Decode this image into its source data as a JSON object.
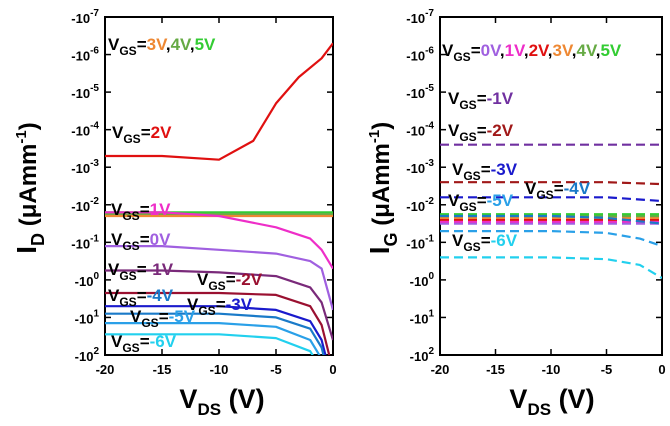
{
  "colors": {
    "vgs_5": "#33cc33",
    "vgs_4": "#66aa44",
    "vgs_3": "#ee8833",
    "vgs_2": "#e01010",
    "vgs_1": "#ee2ec8",
    "vgs_0": "#a060e0",
    "vgs_m1": "#7a2a7a",
    "vgs_m2": "#9a1030",
    "vgs_m3": "#1a1acc",
    "vgs_m4": "#1a7ac8",
    "vgs_m5": "#2aa0e8",
    "vgs_m6": "#22d0ee",
    "vgs_m2_gate": "#a01818",
    "vgs_m1_gate": "#7030a0"
  },
  "chart_data": [
    {
      "panel": "left",
      "type": "line",
      "ylabel": {
        "main": "I",
        "sub": "D",
        "unit": " (μAmm",
        "sup": "-1",
        "close": ")"
      },
      "xlabel": {
        "main": "V",
        "sub": "DS",
        "unit": " (V)"
      },
      "xlim": [
        -20,
        0
      ],
      "xticks": [
        "-20",
        "-15",
        "-10",
        "-5",
        "0"
      ],
      "yticks": [
        {
          "base": "-10",
          "exp": "-7"
        },
        {
          "base": "-10",
          "exp": "-6"
        },
        {
          "base": "-10",
          "exp": "-5"
        },
        {
          "base": "-10",
          "exp": "-4"
        },
        {
          "base": "-10",
          "exp": "-3"
        },
        {
          "base": "-10",
          "exp": "-2"
        },
        {
          "base": "-10",
          "exp": "-1"
        },
        {
          "base": "-10",
          "exp": "0"
        },
        {
          "base": "-10",
          "exp": "1"
        },
        {
          "base": "-10",
          "exp": "2"
        }
      ],
      "y_scale": "log (symmetric, negative current)",
      "series": [
        {
          "key": "vgs_5",
          "x": [
            -20,
            -15,
            -10,
            -5,
            0
          ],
          "y": [
            -1.8,
            -1.8,
            -1.8,
            -1.8,
            -1.8
          ]
        },
        {
          "key": "vgs_4",
          "x": [
            -20,
            -15,
            -10,
            -5,
            0
          ],
          "y": [
            -1.75,
            -1.75,
            -1.75,
            -1.75,
            -1.75
          ]
        },
        {
          "key": "vgs_3",
          "x": [
            -20,
            -15,
            -10,
            -5,
            0
          ],
          "y": [
            -1.7,
            -1.7,
            -1.7,
            -1.7,
            -1.7
          ]
        },
        {
          "key": "vgs_2",
          "x": [
            -20,
            -15,
            -10,
            -7,
            -5,
            -3,
            -1,
            0
          ],
          "y": [
            -3.3,
            -3.3,
            -3.2,
            -3.7,
            -4.7,
            -5.4,
            -5.9,
            -6.3
          ]
        },
        {
          "key": "vgs_1",
          "x": [
            -20,
            -15,
            -10,
            -5,
            -2,
            -1,
            0
          ],
          "y": [
            -1.8,
            -1.8,
            -1.7,
            -1.4,
            -1.1,
            -0.8,
            -0.3
          ]
        },
        {
          "key": "vgs_0",
          "x": [
            -20,
            -15,
            -10,
            -5,
            -2,
            -1,
            0
          ],
          "y": [
            -0.9,
            -0.9,
            -0.8,
            -0.7,
            -0.5,
            -0.3,
            0.8
          ]
        },
        {
          "key": "vgs_m1",
          "x": [
            -20,
            -15,
            -10,
            -5,
            -2,
            -1,
            0
          ],
          "y": [
            -0.25,
            -0.25,
            -0.2,
            -0.1,
            0.2,
            0.6,
            1.6
          ]
        },
        {
          "key": "vgs_m2",
          "x": [
            -20,
            -15,
            -10,
            -5,
            -2,
            -1,
            0
          ],
          "y": [
            0.35,
            0.35,
            0.35,
            0.4,
            0.7,
            1.2,
            2.4
          ]
        },
        {
          "key": "vgs_m3",
          "x": [
            -20,
            -15,
            -10,
            -5,
            -2,
            -1,
            0
          ],
          "y": [
            0.7,
            0.7,
            0.7,
            0.8,
            1.1,
            1.6,
            2.8
          ]
        },
        {
          "key": "vgs_m4",
          "x": [
            -20,
            -15,
            -10,
            -5,
            -2,
            -1,
            0
          ],
          "y": [
            0.9,
            0.9,
            0.9,
            1.0,
            1.3,
            1.8,
            3.0
          ]
        },
        {
          "key": "vgs_m5",
          "x": [
            -20,
            -15,
            -10,
            -5,
            -2,
            -1,
            0
          ],
          "y": [
            1.15,
            1.15,
            1.15,
            1.25,
            1.6,
            2.1,
            3.2
          ]
        },
        {
          "key": "vgs_m6",
          "x": [
            -20,
            -15,
            -10,
            -5,
            -2,
            -1,
            0
          ],
          "y": [
            1.45,
            1.45,
            1.45,
            1.55,
            1.9,
            2.4,
            3.4
          ]
        }
      ],
      "annotations": [
        {
          "key": "vgs_3",
          "prefix": "V",
          "sub": "GS",
          "eq": "=",
          "parts": [
            {
              "t": "3V",
              "c": "vgs_3"
            },
            {
              "t": ",",
              "c": "black"
            },
            {
              "t": "4V",
              "c": "vgs_4"
            },
            {
              "t": ",",
              "c": "black"
            },
            {
              "t": "5V",
              "c": "vgs_5"
            }
          ]
        },
        {
          "key": "vgs_2",
          "prefix": "V",
          "sub": "GS",
          "eq": "=",
          "parts": [
            {
              "t": "2V",
              "c": "vgs_2"
            }
          ]
        },
        {
          "key": "vgs_1",
          "prefix": "V",
          "sub": "GS",
          "eq": "=",
          "parts": [
            {
              "t": "1V",
              "c": "vgs_1"
            }
          ]
        },
        {
          "key": "vgs_0",
          "prefix": "V",
          "sub": "GS",
          "eq": "=",
          "parts": [
            {
              "t": "0V",
              "c": "vgs_0"
            }
          ]
        },
        {
          "key": "vgs_m1",
          "prefix": "V",
          "sub": "GS",
          "eq": "=",
          "parts": [
            {
              "t": "-1V",
              "c": "vgs_m1"
            }
          ]
        },
        {
          "key": "vgs_m2",
          "prefix": "V",
          "sub": "GS",
          "eq": "=",
          "parts": [
            {
              "t": "-2V",
              "c": "vgs_m2"
            }
          ]
        },
        {
          "key": "vgs_m4",
          "prefix": "V",
          "sub": "GS",
          "eq": "=",
          "parts": [
            {
              "t": "-4V",
              "c": "vgs_m4"
            }
          ]
        },
        {
          "key": "vgs_m3",
          "prefix": "V",
          "sub": "GS",
          "eq": "=",
          "parts": [
            {
              "t": "-3V",
              "c": "vgs_m3"
            }
          ]
        },
        {
          "key": "vgs_m5",
          "prefix": "V",
          "sub": "GS",
          "eq": "=",
          "parts": [
            {
              "t": "-5V",
              "c": "vgs_m5"
            }
          ]
        },
        {
          "key": "vgs_m6",
          "prefix": "V",
          "sub": "GS",
          "eq": "=",
          "parts": [
            {
              "t": "-6V",
              "c": "vgs_m6"
            }
          ]
        }
      ]
    },
    {
      "panel": "right",
      "type": "line",
      "ylabel": {
        "main": "I",
        "sub": "G",
        "unit": " (μAmm",
        "sup": "-1",
        "close": ")"
      },
      "xlabel": {
        "main": "V",
        "sub": "DS",
        "unit": " (V)"
      },
      "xlim": [
        -20,
        0
      ],
      "xticks": [
        "-20",
        "-15",
        "-10",
        "-5",
        "0"
      ],
      "yticks": [
        {
          "base": "-10",
          "exp": "-7"
        },
        {
          "base": "-10",
          "exp": "-6"
        },
        {
          "base": "-10",
          "exp": "-5"
        },
        {
          "base": "-10",
          "exp": "-4"
        },
        {
          "base": "-10",
          "exp": "-3"
        },
        {
          "base": "-10",
          "exp": "-2"
        },
        {
          "base": "-10",
          "exp": "-1"
        },
        {
          "base": "-10",
          "exp": "0"
        },
        {
          "base": "-10",
          "exp": "1"
        },
        {
          "base": "-10",
          "exp": "2"
        }
      ],
      "y_scale": "log (symmetric, negative current)",
      "line_style": "dashed",
      "series": [
        {
          "key": "vgs_0",
          "x": [
            -20,
            -10,
            0
          ],
          "y": [
            -1.5,
            -1.5,
            -1.5
          ]
        },
        {
          "key": "vgs_1",
          "x": [
            -20,
            -10,
            0
          ],
          "y": [
            -1.55,
            -1.55,
            -1.55
          ]
        },
        {
          "key": "vgs_2",
          "x": [
            -20,
            -10,
            0
          ],
          "y": [
            -1.6,
            -1.6,
            -1.6
          ]
        },
        {
          "key": "vgs_3",
          "x": [
            -20,
            -10,
            0
          ],
          "y": [
            -1.65,
            -1.65,
            -1.65
          ]
        },
        {
          "key": "vgs_4",
          "x": [
            -20,
            -10,
            0
          ],
          "y": [
            -1.7,
            -1.7,
            -1.7
          ]
        },
        {
          "key": "vgs_5",
          "x": [
            -20,
            -10,
            0
          ],
          "y": [
            -1.75,
            -1.75,
            -1.75
          ]
        },
        {
          "key": "vgs_m1_gate",
          "x": [
            -20,
            -10,
            0
          ],
          "y": [
            -3.6,
            -3.6,
            -3.6
          ]
        },
        {
          "key": "vgs_m2_gate",
          "x": [
            -20,
            -10,
            -5,
            0
          ],
          "y": [
            -2.6,
            -2.6,
            -2.6,
            -2.55
          ]
        },
        {
          "key": "vgs_m3",
          "x": [
            -20,
            -10,
            -5,
            0
          ],
          "y": [
            -2.2,
            -2.2,
            -2.2,
            -2.1
          ]
        },
        {
          "key": "vgs_m4",
          "x": [
            -20,
            -10,
            -5,
            0
          ],
          "y": [
            -1.7,
            -1.7,
            -1.65,
            -1.5
          ]
        },
        {
          "key": "vgs_m5",
          "x": [
            -20,
            -10,
            -5,
            -2,
            0
          ],
          "y": [
            -1.3,
            -1.3,
            -1.25,
            -1.1,
            -0.9
          ]
        },
        {
          "key": "vgs_m6",
          "x": [
            -20,
            -10,
            -5,
            -2,
            0
          ],
          "y": [
            -0.6,
            -0.6,
            -0.55,
            -0.4,
            -0.05
          ]
        }
      ],
      "annotations": [
        {
          "key": "vgs_0",
          "prefix": "V",
          "sub": "GS",
          "eq": "=",
          "parts": [
            {
              "t": "0V",
              "c": "vgs_0"
            },
            {
              "t": ",",
              "c": "black"
            },
            {
              "t": "1V",
              "c": "vgs_1"
            },
            {
              "t": ",",
              "c": "black"
            },
            {
              "t": "2V",
              "c": "vgs_2"
            },
            {
              "t": ",",
              "c": "black"
            },
            {
              "t": "3V",
              "c": "vgs_3"
            },
            {
              "t": ",",
              "c": "black"
            },
            {
              "t": "4V",
              "c": "vgs_4"
            },
            {
              "t": ",",
              "c": "black"
            },
            {
              "t": "5V",
              "c": "vgs_5"
            }
          ]
        },
        {
          "key": "vgs_m1",
          "prefix": "V",
          "sub": "GS",
          "eq": "=",
          "parts": [
            {
              "t": "-1V",
              "c": "vgs_m1_gate"
            }
          ]
        },
        {
          "key": "vgs_m2",
          "prefix": "V",
          "sub": "GS",
          "eq": "=",
          "parts": [
            {
              "t": "-2V",
              "c": "vgs_m2_gate"
            }
          ]
        },
        {
          "key": "vgs_m3",
          "prefix": "V",
          "sub": "GS",
          "eq": "=",
          "parts": [
            {
              "t": "-3V",
              "c": "vgs_m3"
            }
          ]
        },
        {
          "key": "vgs_m4",
          "prefix": "V",
          "sub": "GS",
          "eq": "=",
          "parts": [
            {
              "t": "-4V",
              "c": "vgs_m4"
            }
          ]
        },
        {
          "key": "vgs_m5",
          "prefix": "V",
          "sub": "GS",
          "eq": "=",
          "parts": [
            {
              "t": "-5V",
              "c": "vgs_m5"
            }
          ]
        },
        {
          "key": "vgs_m6",
          "prefix": "V",
          "sub": "GS",
          "eq": "=",
          "parts": [
            {
              "t": "-6V",
              "c": "vgs_m6"
            }
          ]
        }
      ]
    }
  ]
}
